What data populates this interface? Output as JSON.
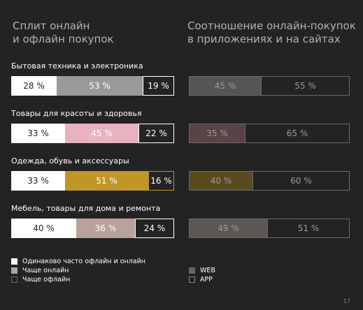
{
  "titles": {
    "left_line1": "Сплит онлайн",
    "left_line2": "и офлайн покупок",
    "right_line1": "Соотношение онлайн-покупок",
    "right_line2": "в приложениях и на сайтах"
  },
  "colors": {
    "background": "#232323",
    "same": "#ffffff",
    "offline": "#232323",
    "app_outline": "#5e5e5e"
  },
  "chart_data": [
    {
      "type": "bar",
      "stacked": true,
      "orientation": "horizontal",
      "title": "Сплит онлайн и офлайн покупок",
      "categories": [
        "Бытовая техника и электроника",
        "Товары для красоты и здоровья",
        "Одежда, обувь и аксессуары",
        "Мебель, товары для дома и ремонта"
      ],
      "series": [
        {
          "name": "Одинаково часто офлайн и онлайн",
          "values": [
            28,
            33,
            33,
            40
          ],
          "labels": [
            "28 %",
            "33 %",
            "33 %",
            "40 %"
          ]
        },
        {
          "name": "Чаще онлайн",
          "values": [
            53,
            45,
            51,
            36
          ],
          "labels": [
            "53 %",
            "45 %",
            "51 %",
            "36 %"
          ]
        },
        {
          "name": "Чаще офлайн",
          "values": [
            19,
            22,
            16,
            24
          ],
          "labels": [
            "19 %",
            "22 %",
            "16 %",
            "24 %"
          ]
        }
      ],
      "category_colors": [
        "#999999",
        "#e8b2bf",
        "#bf9627",
        "#b9a29a"
      ]
    },
    {
      "type": "bar",
      "stacked": true,
      "orientation": "horizontal",
      "title": "Соотношение онлайн-покупок в приложениях и на сайтах",
      "categories": [
        "Бытовая техника и электроника",
        "Товары для красоты и здоровья",
        "Одежда, обувь и аксессуары",
        "Мебель, товары для дома и ремонта"
      ],
      "series": [
        {
          "name": "WEB",
          "values": [
            45,
            35,
            40,
            49
          ],
          "labels": [
            "45 %",
            "35 %",
            "40 %",
            "49 %"
          ]
        },
        {
          "name": "APP",
          "values": [
            55,
            65,
            60,
            51
          ],
          "labels": [
            "55 %",
            "65 %",
            "60 %",
            "51 %"
          ]
        }
      ],
      "category_colors": [
        "#555555",
        "#5a4246",
        "#5a4b1e",
        "#5d5653"
      ]
    }
  ],
  "legend_left": [
    {
      "label": "Одинаково часто офлайн и онлайн",
      "color": "#ffffff"
    },
    {
      "label": "Чаще онлайн",
      "color": "#b9a29a"
    },
    {
      "label": "Чаще офлайн",
      "color": "#232323"
    }
  ],
  "legend_right": [
    {
      "label": "WEB",
      "color": "#666666"
    },
    {
      "label": "APP",
      "color": "#232323"
    }
  ],
  "page_number": "17"
}
